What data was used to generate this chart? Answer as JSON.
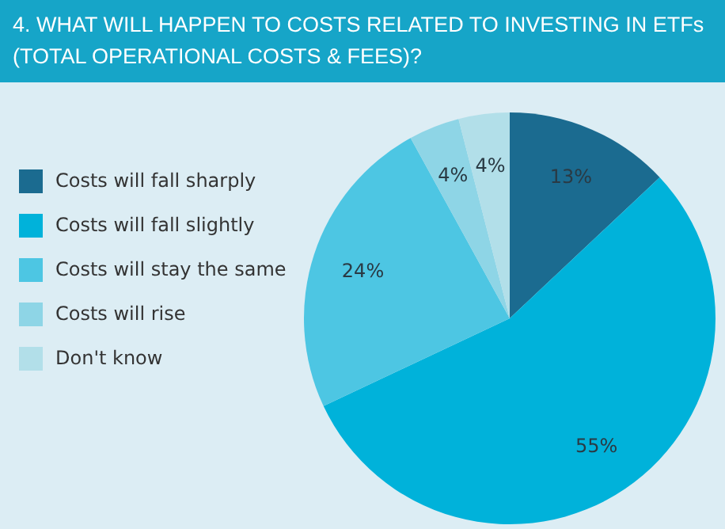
{
  "chart_data": {
    "type": "pie",
    "title": "4. WHAT WILL HAPPEN TO COSTS RELATED TO INVESTING IN ETFs (TOTAL OPERATIONAL COSTS & FEES)?",
    "categories": [
      "Costs will fall sharply",
      "Costs will fall slightly",
      "Costs will stay the same",
      "Costs will rise",
      "Don't know"
    ],
    "values": [
      13,
      55,
      24,
      4,
      4
    ],
    "colors": [
      "#1b6b90",
      "#00b2da",
      "#4dc6e3",
      "#8ed5e6",
      "#b2dfe9"
    ],
    "value_labels": [
      "13%",
      "55%",
      "24%",
      "4%",
      "4%"
    ],
    "legend": "left"
  }
}
